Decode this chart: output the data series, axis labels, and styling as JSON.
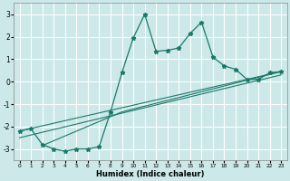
{
  "xlabel": "Humidex (Indice chaleur)",
  "background_color": "#cce8e8",
  "grid_color": "#ffffff",
  "line_color": "#1a7a6a",
  "xlim": [
    -0.5,
    23.5
  ],
  "ylim": [
    -3.5,
    3.5
  ],
  "xticks": [
    0,
    1,
    2,
    3,
    4,
    5,
    6,
    7,
    8,
    9,
    10,
    11,
    12,
    13,
    14,
    15,
    16,
    17,
    18,
    19,
    20,
    21,
    22,
    23
  ],
  "yticks": [
    -3,
    -2,
    -1,
    0,
    1,
    2,
    3
  ],
  "line1_x": [
    0,
    23
  ],
  "line1_y": [
    -2.2,
    0.45
  ],
  "line2_x": [
    0,
    23
  ],
  "line2_y": [
    -2.5,
    0.3
  ],
  "line3_x": [
    2,
    9,
    23
  ],
  "line3_y": [
    -2.85,
    -1.35,
    0.45
  ],
  "curve_x": [
    0,
    1,
    2,
    3,
    4,
    5,
    6,
    7,
    8,
    9,
    10,
    11,
    12,
    13,
    14,
    15,
    16,
    17,
    18,
    19,
    20,
    21,
    22,
    23
  ],
  "curve_y": [
    -2.2,
    -2.1,
    -2.8,
    -3.0,
    -3.1,
    -3.0,
    -3.0,
    -2.9,
    -1.35,
    0.4,
    1.95,
    3.0,
    1.35,
    1.4,
    1.5,
    2.15,
    2.65,
    1.1,
    0.7,
    0.55,
    0.1,
    0.1,
    0.4,
    0.45
  ]
}
